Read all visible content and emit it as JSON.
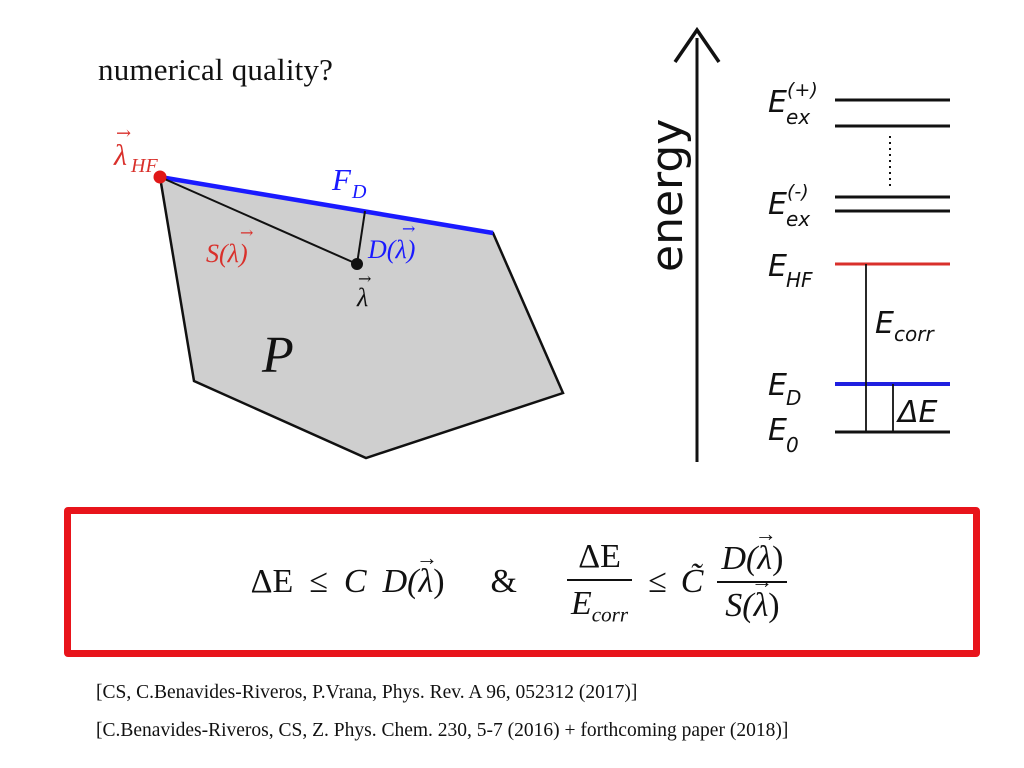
{
  "title": "numerical quality?",
  "polytope": {
    "lambda_hf": {
      "sym": "λ",
      "sub": "HF"
    },
    "face": {
      "sym": "F",
      "sub": "D"
    },
    "S_label": {
      "pre": "S(",
      "sym": "λ",
      "post": ")"
    },
    "D_label": {
      "pre": "D(",
      "sym": "λ",
      "post": ")"
    },
    "lambda": "λ",
    "set": "P"
  },
  "energy": {
    "axis_label": "energy",
    "levels": [
      {
        "base": "E",
        "sub": "ex",
        "sup": "(+)"
      },
      {
        "base": "E",
        "sub": "ex",
        "sup": "(-)"
      },
      {
        "base": "E",
        "sub": "HF"
      },
      {
        "base": "E",
        "sub": "D"
      },
      {
        "base": "E",
        "sub": "0"
      }
    ],
    "corr": {
      "base": "E",
      "sub": "corr"
    },
    "delta": "ΔE",
    "colors": {
      "hf": "#d9302b",
      "d": "#1f1fe0",
      "other": "#111111"
    }
  },
  "formula": {
    "lhs1": "ΔE",
    "leq": "≤",
    "C": "C",
    "D": "D(",
    "lam": "λ",
    "close": ")",
    "amp": "&",
    "num": "ΔE",
    "den_base": "E",
    "den_sub": "corr",
    "Ct": "C̃",
    "num2_pre": "D(",
    "den2_pre": "S(",
    "accent": "#e8141b"
  },
  "references": [
    "[CS, C.Benavides-Riveros, P.Vrana, Phys. Rev. A 96, 052312 (2017)]",
    "[C.Benavides-Riveros, CS, Z. Phys. Chem. 230, 5-7 (2016) + forthcoming paper (2018)]"
  ]
}
